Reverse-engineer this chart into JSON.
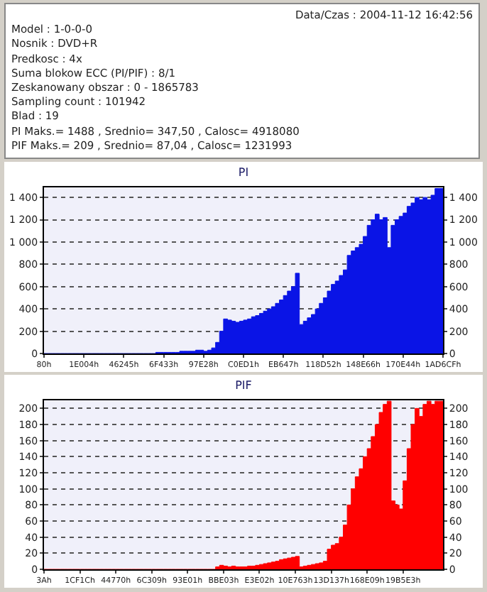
{
  "chart_data": [
    {
      "type": "other",
      "annotations": [
        "Data/Czas : 2004-11-12 16:42:56",
        "Model : 1-0-0-0",
        "Nosnik : DVD+R",
        "Predkosc : 4x",
        "Suma blokow ECC (PI/PIF) : 8/1",
        "Zeskanowany obszar : 0 - 1865783",
        "Sampling count : 101942",
        "Blad : 19",
        "PI Maks.= 1488 , Srednio= 347,50 , Calosc= 4918080",
        "PIF Maks.= 209 , Srednio= 87,04 , Calosc= 1231993"
      ]
    },
    {
      "type": "area",
      "title": "PI",
      "categories": [
        "80h",
        null,
        null,
        null,
        null,
        null,
        null,
        null,
        null,
        null,
        "1E004h",
        null,
        null,
        null,
        null,
        null,
        null,
        null,
        null,
        null,
        "46245h",
        null,
        null,
        null,
        null,
        null,
        null,
        null,
        null,
        null,
        "6F433h",
        null,
        null,
        null,
        null,
        null,
        null,
        null,
        null,
        null,
        "97E28h",
        null,
        null,
        null,
        null,
        null,
        null,
        null,
        null,
        null,
        "C0ED1h",
        null,
        null,
        null,
        null,
        null,
        null,
        null,
        null,
        null,
        "EB647h",
        null,
        null,
        null,
        null,
        null,
        null,
        null,
        null,
        null,
        "118D52h",
        null,
        null,
        null,
        null,
        null,
        null,
        null,
        null,
        null,
        "148E66h",
        null,
        null,
        null,
        null,
        null,
        null,
        null,
        null,
        null,
        "170E44h",
        null,
        null,
        null,
        null,
        null,
        null,
        null,
        null,
        null,
        "1AD6CFh"
      ],
      "series": [
        {
          "color": "#0a14e6",
          "values": [
            0,
            0,
            0,
            0,
            0,
            0,
            0,
            0,
            0,
            0,
            0,
            0,
            0,
            0,
            0,
            0,
            0,
            0,
            0,
            0,
            0,
            0,
            0,
            0,
            0,
            0,
            0,
            0,
            10,
            10,
            10,
            10,
            10,
            10,
            20,
            20,
            20,
            20,
            30,
            30,
            20,
            30,
            50,
            100,
            200,
            310,
            300,
            290,
            280,
            290,
            300,
            310,
            330,
            340,
            360,
            380,
            400,
            420,
            450,
            480,
            520,
            560,
            600,
            720,
            260,
            290,
            320,
            350,
            400,
            450,
            500,
            560,
            620,
            650,
            700,
            750,
            880,
            920,
            950,
            980,
            1050,
            1150,
            1200,
            1250,
            1200,
            1220,
            950,
            1150,
            1200,
            1230,
            1260,
            1320,
            1350,
            1400,
            1380,
            1400,
            1380,
            1420,
            1480,
            1480,
            1300
          ]
        }
      ],
      "ylim": [
        0,
        1490
      ],
      "yticks": [
        0,
        200,
        400,
        600,
        800,
        {
          "value": 1000,
          "label": "1 000"
        },
        {
          "value": 1200,
          "label": "1 200"
        },
        {
          "value": 1400,
          "label": "1 400"
        }
      ],
      "y2lim": [
        0,
        1490
      ],
      "y2ticks": [
        0,
        200,
        400,
        600,
        800,
        {
          "value": 1000,
          "label": "1 000"
        },
        {
          "value": 1200,
          "label": "1 200"
        },
        {
          "value": 1400,
          "label": "1 400"
        }
      ],
      "grid": "y"
    },
    {
      "type": "area",
      "title": "PIF",
      "categories": [
        "3Ah",
        null,
        null,
        null,
        null,
        null,
        null,
        null,
        null,
        "1CF1Ch",
        null,
        null,
        null,
        null,
        null,
        null,
        null,
        null,
        "44770h",
        null,
        null,
        null,
        null,
        null,
        null,
        null,
        null,
        "6C309h",
        null,
        null,
        null,
        null,
        null,
        null,
        null,
        null,
        "93E01h",
        null,
        null,
        null,
        null,
        null,
        null,
        null,
        null,
        "BBE03h",
        null,
        null,
        null,
        null,
        null,
        null,
        null,
        null,
        "E3E02h",
        null,
        null,
        null,
        null,
        null,
        null,
        null,
        null,
        "10E763h",
        null,
        null,
        null,
        null,
        null,
        null,
        null,
        null,
        "13D137h",
        null,
        null,
        null,
        null,
        null,
        null,
        null,
        null,
        "168E09h",
        null,
        null,
        null,
        null,
        null,
        null,
        null,
        null,
        "19B5E3h",
        null,
        null,
        null,
        null,
        null,
        null,
        null,
        null,
        null,
        null
      ],
      "series": [
        {
          "color": "#ff0000",
          "values": [
            0,
            0,
            0,
            0,
            0,
            0,
            0,
            0,
            0,
            0,
            0,
            0,
            0,
            0,
            0,
            0,
            0,
            0,
            0,
            0,
            0,
            0,
            0,
            0,
            0,
            0,
            0,
            0,
            0,
            0,
            0,
            0,
            0,
            0,
            0,
            0,
            0,
            0,
            0,
            0,
            0,
            0,
            0,
            3,
            5,
            4,
            3,
            4,
            3,
            3,
            3,
            4,
            4,
            5,
            6,
            7,
            8,
            9,
            10,
            12,
            13,
            14,
            15,
            16,
            3,
            4,
            5,
            6,
            7,
            8,
            10,
            25,
            30,
            32,
            40,
            55,
            80,
            100,
            115,
            125,
            140,
            150,
            165,
            180,
            195,
            205,
            209,
            85,
            80,
            75,
            110,
            150,
            180,
            200,
            190,
            205,
            209,
            205,
            209,
            209,
            209
          ]
        }
      ],
      "ylim": [
        0,
        210
      ],
      "yticks": [
        0,
        20,
        40,
        60,
        80,
        100,
        120,
        140,
        160,
        180,
        200
      ],
      "y2lim": [
        0,
        210
      ],
      "y2ticks": [
        0,
        20,
        40,
        60,
        80,
        100,
        120,
        140,
        160,
        180,
        200
      ],
      "grid": "y"
    }
  ]
}
